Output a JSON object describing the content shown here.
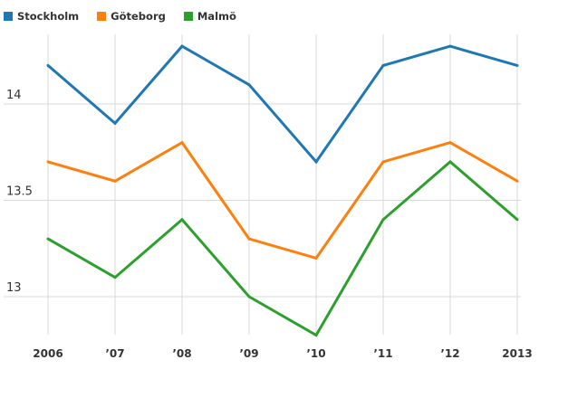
{
  "chart_data": {
    "type": "line",
    "title": "",
    "xlabel": "",
    "ylabel": "",
    "categories": [
      "2006",
      "’07",
      "’08",
      "’09",
      "’10",
      "’11",
      "’12",
      "2013"
    ],
    "yticks": [
      "13",
      "13.5",
      "14"
    ],
    "ylim": [
      12.8,
      14.38
    ],
    "grid": true,
    "legend_position": "top-left",
    "series": [
      {
        "name": "Stockholm",
        "color": "#1f77b4",
        "values": [
          14.2,
          13.9,
          14.3,
          14.1,
          13.7,
          14.2,
          14.3,
          14.2
        ]
      },
      {
        "name": "Göteborg",
        "color": "#ff7f0e",
        "values": [
          13.7,
          13.6,
          13.8,
          13.3,
          13.2,
          13.7,
          13.8,
          13.6
        ]
      },
      {
        "name": "Malmö",
        "color": "#2ca02c",
        "values": [
          13.3,
          13.1,
          13.4,
          13.0,
          12.8,
          13.4,
          13.7,
          13.4
        ]
      }
    ]
  }
}
